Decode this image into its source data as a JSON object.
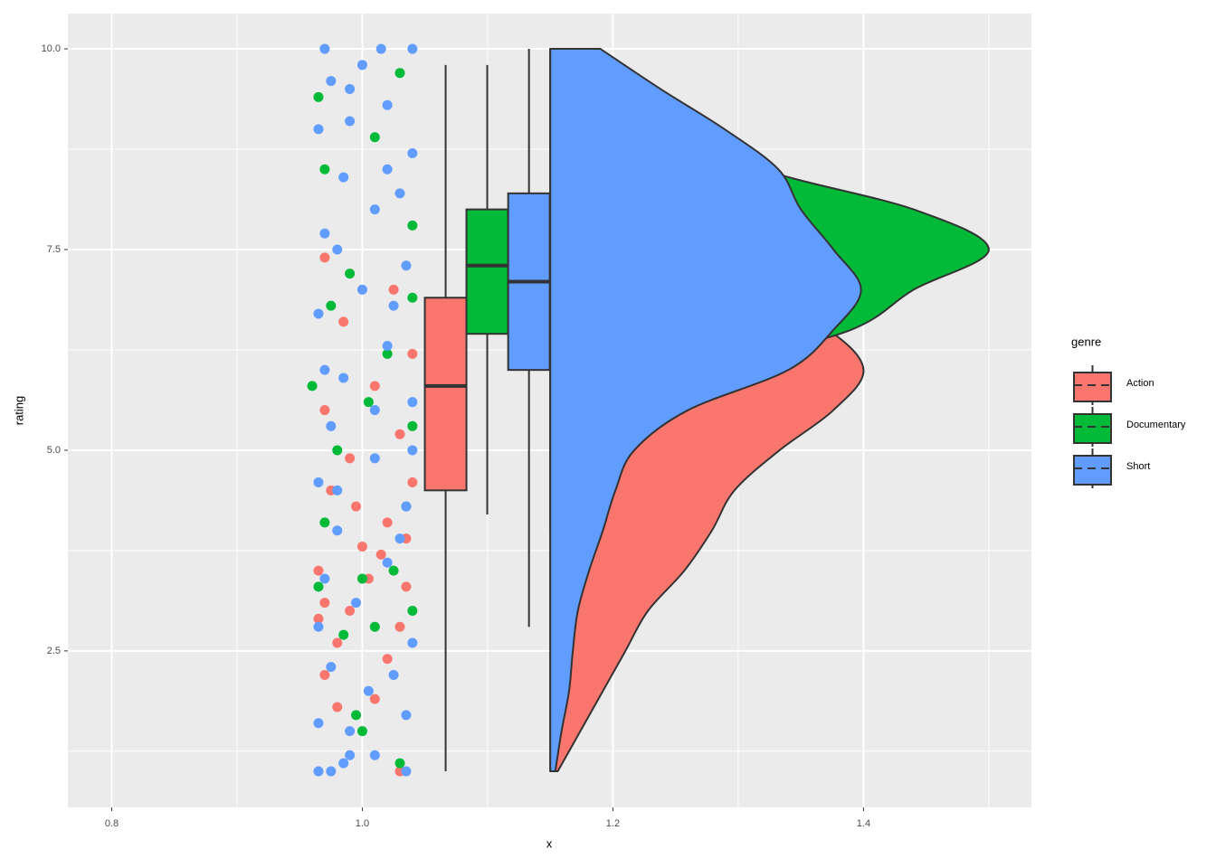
{
  "chart_data": {
    "type": "raincloud",
    "x_label": "x",
    "y_label": "rating",
    "legend_title": "genre",
    "xlim": [
      0.765,
      1.534
    ],
    "ylim": [
      0.55,
      10.44
    ],
    "xticks": [
      0.8,
      {
        "value": 1.0,
        "label": "1.0"
      },
      1.2,
      1.4
    ],
    "yticks": [
      {
        "value": 2.5,
        "label": "2.5"
      },
      {
        "value": 5.0,
        "label": "5.0"
      },
      7.5,
      {
        "value": 10.0,
        "label": "10.0"
      }
    ],
    "grid": true,
    "minor_grid": true,
    "legend_position": "right",
    "density_base": 1.15,
    "series": [
      {
        "name": "Action",
        "color": "#f8766d",
        "points": {
          "x": [
            0.97,
            1.03,
            0.98,
            1.01,
            0.99,
            1.035,
            0.965,
            1.0,
            1.02,
            0.975,
            1.04,
            0.99,
            1.03,
            0.97,
            1.01,
            1.04,
            0.985,
            1.025,
            0.97,
            1.005,
            1.03,
            0.965,
            1.015,
            0.98,
            1.02,
            0.995,
            1.035,
            0.97
          ],
          "y": [
            2.2,
            1.0,
            2.6,
            1.9,
            3.0,
            3.3,
            3.5,
            3.8,
            4.1,
            4.5,
            4.6,
            4.9,
            5.2,
            5.5,
            5.8,
            6.2,
            6.6,
            7.0,
            7.4,
            3.4,
            2.8,
            2.9,
            3.7,
            1.8,
            2.4,
            4.3,
            3.9,
            3.1
          ]
        },
        "box": {
          "x": 1.0665,
          "min": 1.0,
          "q1": 4.5,
          "median": 5.8,
          "q3": 6.9,
          "max": 9.8
        },
        "density": {
          "rating": [
            1,
            1.5,
            2,
            2.5,
            3,
            3.5,
            4,
            4.5,
            5,
            5.5,
            6,
            6.5,
            7,
            7.5,
            8,
            8.5,
            9,
            9.5,
            10
          ],
          "width": [
            0.006,
            0.024,
            0.042,
            0.06,
            0.078,
            0.107,
            0.129,
            0.147,
            0.183,
            0.226,
            0.25,
            0.222,
            0.16,
            0.11,
            0.08,
            0.06,
            0.045,
            0.03,
            0.015
          ]
        }
      },
      {
        "name": "Documentary",
        "color": "#00ba38",
        "points": {
          "x": [
            1.03,
            1.0,
            0.995,
            0.985,
            1.04,
            0.965,
            1.01,
            1.025,
            0.97,
            1.0,
            1.035,
            0.98,
            1.04,
            0.96,
            1.02,
            0.975,
            1.04,
            0.97,
            1.01,
            0.965,
            1.03,
            0.99,
            1.005,
            1.04
          ],
          "y": [
            1.1,
            1.5,
            1.7,
            2.7,
            3.0,
            3.3,
            2.8,
            3.5,
            4.1,
            3.4,
            4.3,
            5.0,
            5.3,
            5.8,
            6.2,
            6.8,
            7.8,
            8.5,
            8.9,
            9.4,
            9.7,
            7.2,
            5.6,
            6.9
          ]
        },
        "box": {
          "x": 1.0997,
          "min": 4.2,
          "q1": 6.45,
          "median": 7.3,
          "q3": 8.0,
          "max": 9.8
        },
        "density": {
          "rating": [
            4,
            4.5,
            5,
            5.5,
            6,
            6.5,
            7,
            7.5,
            8,
            8.5,
            9,
            9.5,
            10
          ],
          "width": [
            0.01,
            0.04,
            0.06,
            0.09,
            0.13,
            0.24,
            0.29,
            0.35,
            0.29,
            0.17,
            0.12,
            0.07,
            0.03
          ]
        }
      },
      {
        "name": "Short",
        "color": "#619cff",
        "points": {
          "x": [
            0.965,
            0.975,
            0.985,
            1.035,
            0.99,
            1.01,
            0.965,
            0.99,
            1.035,
            0.975,
            1.025,
            1.005,
            0.965,
            1.04,
            0.995,
            0.97,
            1.02,
            0.98,
            1.035,
            0.965,
            1.01,
            0.975,
            1.04,
            0.985,
            1.02,
            0.965,
            1.0,
            1.035,
            0.97,
            1.01,
            0.985,
            1.04,
            0.965,
            1.02,
            0.975,
            1.0,
            0.97,
            1.015,
            1.04,
            0.99,
            1.03,
            0.98,
            1.025,
            0.97,
            1.01,
            1.04,
            0.98,
            1.03,
            0.99,
            1.02
          ],
          "y": [
            1.0,
            1.0,
            1.1,
            1.0,
            1.2,
            1.2,
            1.6,
            1.5,
            1.7,
            2.3,
            2.2,
            2.0,
            2.8,
            2.6,
            3.1,
            3.4,
            3.6,
            4.0,
            4.3,
            4.6,
            4.9,
            5.3,
            5.6,
            5.9,
            6.3,
            6.7,
            7.0,
            7.3,
            7.7,
            8.0,
            8.4,
            8.7,
            9.0,
            9.3,
            9.6,
            9.8,
            10.0,
            10.0,
            10.0,
            9.5,
            8.2,
            7.5,
            6.8,
            6.0,
            5.5,
            5.0,
            4.5,
            3.9,
            9.1,
            8.5
          ]
        },
        "box": {
          "x": 1.133,
          "min": 2.8,
          "q1": 6.0,
          "median": 7.1,
          "q3": 8.2,
          "max": 10.0
        },
        "density": {
          "rating": [
            1,
            1.5,
            2,
            2.5,
            3,
            3.5,
            4,
            4.5,
            5,
            5.5,
            6,
            6.5,
            7,
            7.5,
            8,
            8.5,
            9,
            9.5,
            10
          ],
          "width": [
            0.004,
            0.009,
            0.015,
            0.018,
            0.022,
            0.031,
            0.042,
            0.052,
            0.067,
            0.11,
            0.19,
            0.226,
            0.248,
            0.226,
            0.2,
            0.182,
            0.139,
            0.088,
            0.04
          ]
        }
      }
    ]
  }
}
